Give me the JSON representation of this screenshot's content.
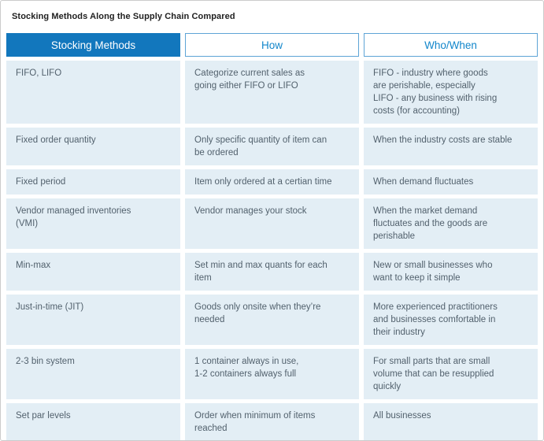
{
  "title": "Stocking Methods Along the Supply Chain Compared",
  "chart_data": {
    "type": "table",
    "title": "Stocking Methods Along the Supply Chain Compared",
    "columns": [
      "Stocking Methods",
      "How",
      "Who/When"
    ],
    "rows": [
      [
        "FIFO, LIFO",
        "Categorize current sales as\ngoing either FIFO or LIFO",
        "FIFO - industry where goods\nare perishable, especially\nLIFO - any business with rising\ncosts (for accounting)"
      ],
      [
        "Fixed order quantity",
        "Only specific quantity of item can\nbe ordered",
        "When the industry costs are stable"
      ],
      [
        "Fixed period",
        "Item only ordered at a certian time",
        "When demand fluctuates"
      ],
      [
        "Vendor managed inventories\n(VMI)",
        "Vendor manages your stock",
        "When the market demand\nfluctuates and the goods are\nperishable"
      ],
      [
        "Min-max",
        "Set min and max quants for each\nitem",
        "New or small businesses who\nwant to keep it simple"
      ],
      [
        "Just-in-time (JIT)",
        "Goods only onsite when they’re\nneeded",
        "More experienced practitioners\nand businesses comfortable in\ntheir industry"
      ],
      [
        "2-3 bin system",
        "1 container always in use,\n1-2 containers always full",
        "For small parts that are small\nvolume that can be resupplied\nquickly"
      ],
      [
        "Set par levels",
        "Order when minimum of items\nreached",
        "All businesses"
      ]
    ],
    "layout": {
      "header_style": "first column filled blue, other headers white with blue outline",
      "legend": "none",
      "grid": "cell blocks separated by white gutters"
    }
  },
  "colors": {
    "header_fill": "#1277BD",
    "header_fill_text": "#FFFFFF",
    "header_outline": "#5EA4D6",
    "header_outline_text": "#1286CB",
    "cell_background": "#E3EEF5",
    "cell_text": "#52616D",
    "title_text": "#212121",
    "page_background": "#FFFFFF",
    "frame_border": "#CBCBCB"
  }
}
